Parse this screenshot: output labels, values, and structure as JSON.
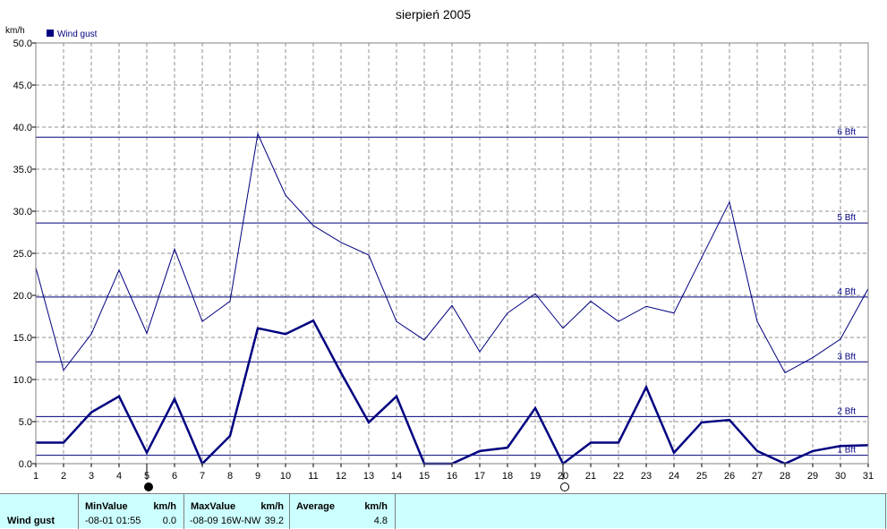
{
  "chart_data": {
    "type": "line",
    "title": "sierpień 2005",
    "ylabel": "km/h",
    "xlabel": "",
    "x": [
      1,
      2,
      3,
      4,
      5,
      6,
      7,
      8,
      9,
      10,
      11,
      12,
      13,
      14,
      15,
      16,
      17,
      18,
      19,
      20,
      21,
      22,
      23,
      24,
      25,
      26,
      27,
      28,
      29,
      30,
      31
    ],
    "ylim": [
      0,
      50
    ],
    "yticks": [
      "0.0",
      "5.0",
      "10.0",
      "15.0",
      "20.0",
      "25.0",
      "30.0",
      "35.0",
      "40.0",
      "45.0",
      "50.0"
    ],
    "grid": true,
    "legend_position": "top-left",
    "series": [
      {
        "name": "Wind gust",
        "color": "#000080",
        "values": [
          2.5,
          2.5,
          6.1,
          8.0,
          1.3,
          7.7,
          0.0,
          3.3,
          16.1,
          15.4,
          17.0,
          10.8,
          4.9,
          8.0,
          0.0,
          0.0,
          1.5,
          1.9,
          6.6,
          0.0,
          2.5,
          2.5,
          9.1,
          1.3,
          4.9,
          5.2,
          1.5,
          0.0,
          1.5,
          2.1,
          2.2
        ]
      },
      {
        "color": "#000080",
        "values": [
          23.3,
          11.1,
          15.4,
          23.0,
          15.5,
          25.5,
          16.9,
          19.3,
          39.2,
          31.9,
          28.3,
          26.3,
          24.8,
          16.9,
          14.7,
          18.8,
          13.3,
          17.9,
          20.2,
          16.1,
          19.3,
          16.9,
          18.7,
          17.9,
          24.5,
          31.1,
          16.9,
          10.8,
          12.6,
          14.8,
          20.8
        ]
      }
    ],
    "beaufort_lines": [
      {
        "label": "1 Bft",
        "value": 1.0
      },
      {
        "label": "2 Bft",
        "value": 5.6
      },
      {
        "label": "3 Bft",
        "value": 12.1
      },
      {
        "label": "4 Bft",
        "value": 19.8
      },
      {
        "label": "5 Bft",
        "value": 28.6
      },
      {
        "label": "6 Bft",
        "value": 38.8
      }
    ],
    "moon_markers": [
      {
        "day": 5,
        "phase": "new-moon"
      },
      {
        "day": 20,
        "phase": "full-moon"
      }
    ]
  },
  "stats": {
    "row_label": "Wind gust",
    "min": {
      "header": "MinValue",
      "unit": "km/h",
      "when": "-08-01  01:55",
      "value": "0.0"
    },
    "max": {
      "header": "MaxValue",
      "unit": "km/h",
      "when": "-08-09  16W-NW",
      "value": "39.2"
    },
    "avg": {
      "header": "Average",
      "unit": "km/h",
      "value": "4.8"
    }
  }
}
